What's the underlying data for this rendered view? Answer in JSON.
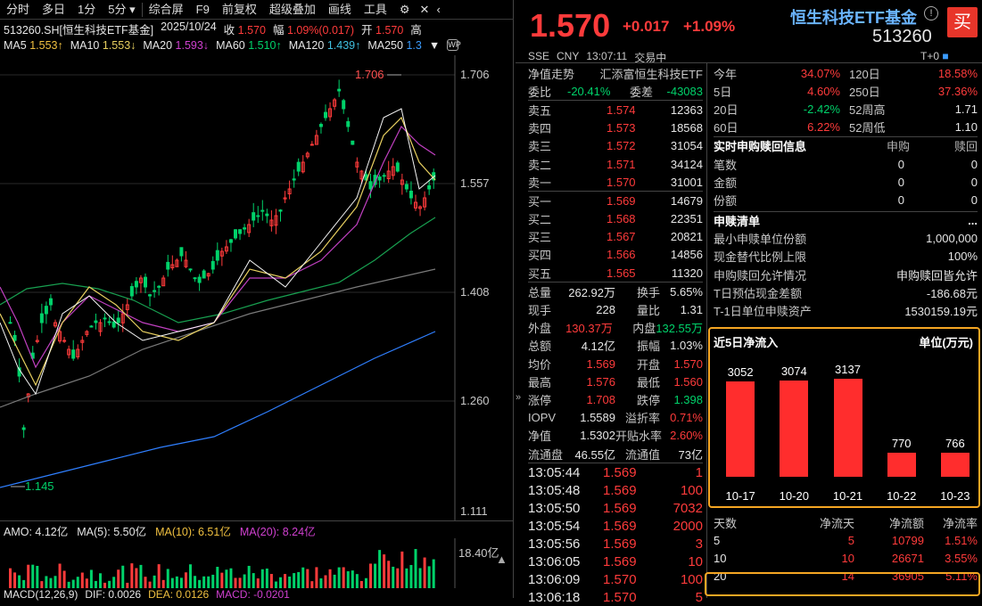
{
  "toolbar": {
    "items": [
      "分时",
      "多日",
      "1分",
      "5分 ▾",
      "综合屏",
      "F9",
      "前复权",
      "超级叠加",
      "画线",
      "工具"
    ]
  },
  "info": {
    "code": "513260.SH[恒生科技ETF基金]",
    "date": "2025/10/24",
    "close_label": "收",
    "close": "1.570",
    "range_label": "幅",
    "range": "1.09%(0.017)",
    "open_label": "开",
    "open": "1.570",
    "high_label": "高"
  },
  "ma": {
    "ma5_l": "MA5",
    "ma5": "1.553↑",
    "ma10_l": "MA10",
    "ma10": "1.553↓",
    "ma20_l": "MA20",
    "ma20": "1.593↓",
    "ma60_l": "MA60",
    "ma60": "1.510↑",
    "ma120_l": "MA120",
    "ma120": "1.439↑",
    "ma250_l": "MA250",
    "ma250": "1.3"
  },
  "axis": {
    "p1": "1.706",
    "p2": "1.557",
    "p3": "1.408",
    "p4": "1.260",
    "p5": "1.111",
    "high_mark": "1.706",
    "low_mark": "1.145",
    "vol_max": "18.40亿"
  },
  "amo": {
    "amo": "AMO: 4.12亿",
    "ma5": "MA(5): 5.50亿",
    "ma10": "MA(10): 6.51亿",
    "ma20": "MA(20): 8.24亿"
  },
  "macd": {
    "label": "MACD(12,26,9)",
    "dif": "DIF: 0.0026",
    "dea": "DEA: 0.0126",
    "macd": "MACD: -0.0201"
  },
  "header": {
    "price": "1.570",
    "chg": "+0.017",
    "pct": "+1.09%",
    "name": "恒生科技ETF基金",
    "code": "513260",
    "buy": "买",
    "exch": "SSE",
    "cur": "CNY",
    "time": "13:07:11",
    "status": "交易中",
    "tzero": "T+0"
  },
  "nav": {
    "l": "净值走势",
    "fund": "汇添富恒生科技ETF",
    "wb_l": "委比",
    "wb": "-20.41%",
    "wc_l": "委差",
    "wc": "-43083"
  },
  "asks": [
    {
      "l": "卖五",
      "p": "1.574",
      "v": "12363"
    },
    {
      "l": "卖四",
      "p": "1.573",
      "v": "18568"
    },
    {
      "l": "卖三",
      "p": "1.572",
      "v": "31054"
    },
    {
      "l": "卖二",
      "p": "1.571",
      "v": "34124"
    },
    {
      "l": "卖一",
      "p": "1.570",
      "v": "31001"
    }
  ],
  "bids": [
    {
      "l": "买一",
      "p": "1.569",
      "v": "14679"
    },
    {
      "l": "买二",
      "p": "1.568",
      "v": "22351"
    },
    {
      "l": "买三",
      "p": "1.567",
      "v": "20821"
    },
    {
      "l": "买四",
      "p": "1.566",
      "v": "14856"
    },
    {
      "l": "买五",
      "p": "1.565",
      "v": "11320"
    }
  ],
  "stats": [
    {
      "l1": "总量",
      "v1": "262.92万",
      "l2": "换手",
      "v2": "5.65%"
    },
    {
      "l1": "现手",
      "v1": "228",
      "l2": "量比",
      "v2": "1.31"
    },
    {
      "l1": "外盘",
      "v1": "130.37万",
      "l2": "内盘",
      "v2": "132.55万"
    },
    {
      "l1": "总额",
      "v1": "4.12亿",
      "l2": "振幅",
      "v2": "1.03%"
    },
    {
      "l1": "均价",
      "v1": "1.569",
      "l2": "开盘",
      "v2": "1.570"
    },
    {
      "l1": "最高",
      "v1": "1.576",
      "l2": "最低",
      "v2": "1.560"
    },
    {
      "l1": "涨停",
      "v1": "1.708",
      "l2": "跌停",
      "v2": "1.398"
    },
    {
      "l1": "IOPV",
      "v1": "1.5589",
      "l2": "溢折率",
      "v2": "0.71%"
    },
    {
      "l1": "净值",
      "v1": "1.5302",
      "l2": "开贴水率",
      "v2": "2.60%"
    },
    {
      "l1": "流通盘",
      "v1": "46.55亿",
      "l2": "流通值",
      "v2": "73亿"
    }
  ],
  "ticks": [
    {
      "t": "13:05:44",
      "p": "1.569",
      "v": "1"
    },
    {
      "t": "13:05:48",
      "p": "1.569",
      "v": "100"
    },
    {
      "t": "13:05:50",
      "p": "1.569",
      "v": "7032"
    },
    {
      "t": "13:05:54",
      "p": "1.569",
      "v": "2000"
    },
    {
      "t": "13:05:56",
      "p": "1.569",
      "v": "3"
    },
    {
      "t": "13:06:05",
      "p": "1.569",
      "v": "10"
    },
    {
      "t": "13:06:09",
      "p": "1.570",
      "v": "100"
    },
    {
      "t": "13:06:18",
      "p": "1.570",
      "v": "5"
    }
  ],
  "perf": [
    {
      "l1": "今年",
      "v1": "34.07%",
      "l2": "120日",
      "v2": "18.58%"
    },
    {
      "l1": "5日",
      "v1": "4.60%",
      "l2": "250日",
      "v2": "37.36%"
    },
    {
      "l1": "20日",
      "v1": "-2.42%",
      "l2": "52周高",
      "v2": "1.71"
    },
    {
      "l1": "60日",
      "v1": "6.22%",
      "l2": "52周低",
      "v2": "1.10"
    }
  ],
  "sub": {
    "title": "实时申购赎回信息",
    "c1": "申购",
    "c2": "赎回",
    "rows": [
      {
        "l": "笔数",
        "a": "0",
        "b": "0"
      },
      {
        "l": "金额",
        "a": "0",
        "b": "0"
      },
      {
        "l": "份额",
        "a": "0",
        "b": "0"
      }
    ]
  },
  "list": {
    "title": "申赎清单",
    "more": "...",
    "rows": [
      {
        "l": "最小申赎单位份额",
        "v": "1,000,000"
      },
      {
        "l": "现金替代比例上限",
        "v": "100%"
      },
      {
        "l": "申购赎回允许情况",
        "v": "申购赎回皆允许"
      },
      {
        "l": "T日预估现金差额",
        "v": "-186.68元"
      },
      {
        "l": "T-1日单位申赎资产",
        "v": "1530159.19元"
      }
    ]
  },
  "flow": {
    "title": "近5日净流入",
    "unit": "单位(万元)"
  },
  "flow_table": {
    "h": [
      "天数",
      "净流天",
      "净流额",
      "净流率"
    ],
    "rows": [
      [
        "5",
        "5",
        "10799",
        "1.51%"
      ],
      [
        "10",
        "10",
        "26671",
        "3.55%"
      ],
      [
        "20",
        "14",
        "36905",
        "5.11%"
      ]
    ]
  },
  "chart_data": {
    "type": "bar",
    "title": "近5日净流入",
    "ylabel": "单位(万元)",
    "categories": [
      "10-17",
      "10-20",
      "10-21",
      "10-22",
      "10-23"
    ],
    "values": [
      3052,
      3074,
      3137,
      770,
      766
    ],
    "ylim": [
      0,
      3300
    ],
    "color": "#ff2d2d"
  }
}
